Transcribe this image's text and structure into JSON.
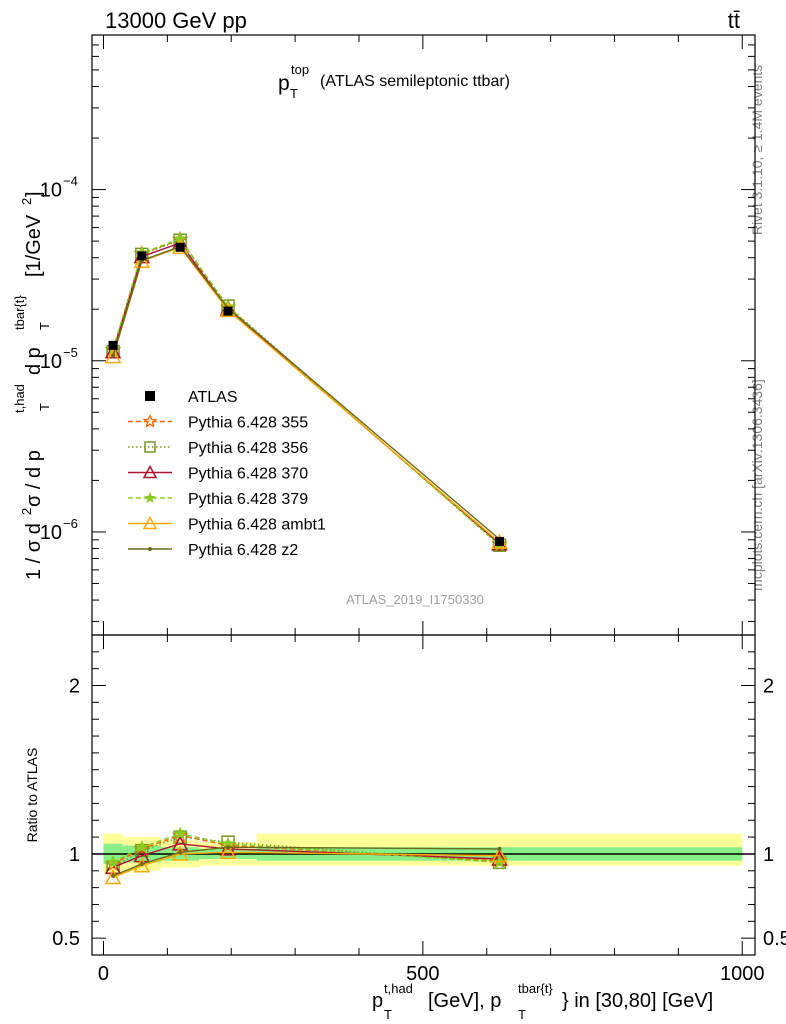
{
  "header": {
    "energy_label": "13000 GeV pp",
    "process_label": "tt̄",
    "rivet_label": "Rivet 3.1.10, ≥ 1.4M events",
    "mcplots_label": "mcplots.cern.ch [arXiv:1306.3436]",
    "analysis_label": "ATLAS_2019_I1750330"
  },
  "main_title": {
    "p": "p",
    "sub": "T",
    "sup": "top",
    "suffix": "(ATLAS semileptonic ttbar)"
  },
  "y_axis": {
    "pre": "1 / σ d",
    "sq": "2",
    "mid": "σ / d p",
    "t": "T",
    "had": "t,had",
    "d2": " d p",
    "t2": "T",
    "tbar": "tbar{t}",
    "unit": "[1/GeV",
    "unit_sq": "2",
    "unit_close": "]"
  },
  "x_axis": {
    "p1": "p",
    "t1": "T",
    "had": "t,had",
    "mid": "[GeV], p",
    "t2": "T",
    "tbar": "tbar{t}",
    "end": "} in [30,80] [GeV]"
  },
  "ratio_label": "Ratio to ATLAS",
  "chart_data": {
    "type": "line",
    "x_range": [
      -18,
      1020
    ],
    "x_ticks": [
      0,
      500,
      1000
    ],
    "x_tick_labels": [
      "0",
      "500",
      "1000"
    ],
    "main_y_log": true,
    "main_y_range": [
      2.5e-07,
      0.0008
    ],
    "main_y_ticks": [
      {
        "value": 1e-06,
        "base": "10",
        "exp": "−6"
      },
      {
        "value": 1e-05,
        "base": "10",
        "exp": "−5"
      },
      {
        "value": 0.0001,
        "base": "10",
        "exp": "−4"
      }
    ],
    "ratio_y_range": [
      0.4,
      2.3
    ],
    "ratio_y_ticks": [
      {
        "value": 0.5,
        "label": "0.5"
      },
      {
        "value": 1,
        "label": "1"
      },
      {
        "value": 2,
        "label": "2"
      }
    ],
    "x": [
      15,
      60,
      120,
      195,
      620
    ],
    "bin_edges": [
      0,
      30,
      90,
      150,
      240,
      1000
    ],
    "atlas": {
      "name": "ATLAS",
      "values": [
        1.23e-05,
        4.1e-05,
        4.6e-05,
        1.95e-05,
        8.8e-07
      ],
      "band_yellow": [
        [
          0.88,
          1.12
        ],
        [
          0.9,
          1.1
        ],
        [
          0.92,
          1.08
        ],
        [
          0.93,
          1.07
        ],
        [
          0.93,
          1.12
        ]
      ],
      "band_green": [
        [
          0.94,
          1.06
        ],
        [
          0.95,
          1.05
        ],
        [
          0.96,
          1.04
        ],
        [
          0.97,
          1.03
        ],
        [
          0.96,
          1.04
        ]
      ]
    },
    "series": [
      {
        "name": "Pythia 6.428 355",
        "color": "#ff6600",
        "dash": "5,3",
        "marker": "star-open",
        "ratio": [
          0.94,
          1.03,
          1.11,
          1.05,
          0.96
        ]
      },
      {
        "name": "Pythia 6.428 356",
        "color": "#779922",
        "dash": "1.5,2.5",
        "marker": "square-open",
        "ratio": [
          0.92,
          1.02,
          1.1,
          1.07,
          0.95
        ]
      },
      {
        "name": "Pythia 6.428 370",
        "color": "#aa1133",
        "dash": "",
        "marker": "triangle-open",
        "ratio": [
          0.92,
          0.99,
          1.06,
          1.03,
          0.97
        ]
      },
      {
        "name": "Pythia 6.428 379",
        "color": "#88cc22",
        "dash": "5,3",
        "marker": "star",
        "ratio": [
          0.95,
          1.04,
          1.12,
          1.06,
          0.95
        ]
      },
      {
        "name": "Pythia 6.428 ambt1",
        "color": "#ffaa00",
        "dash": "",
        "marker": "triangle-open",
        "ratio": [
          0.86,
          0.93,
          1.0,
          1.01,
          0.99
        ]
      },
      {
        "name": "Pythia 6.428 z2",
        "color": "#6b6b1e",
        "dash": "",
        "marker": "dot",
        "ratio": [
          0.87,
          0.94,
          1.01,
          1.04,
          1.03
        ]
      }
    ]
  }
}
